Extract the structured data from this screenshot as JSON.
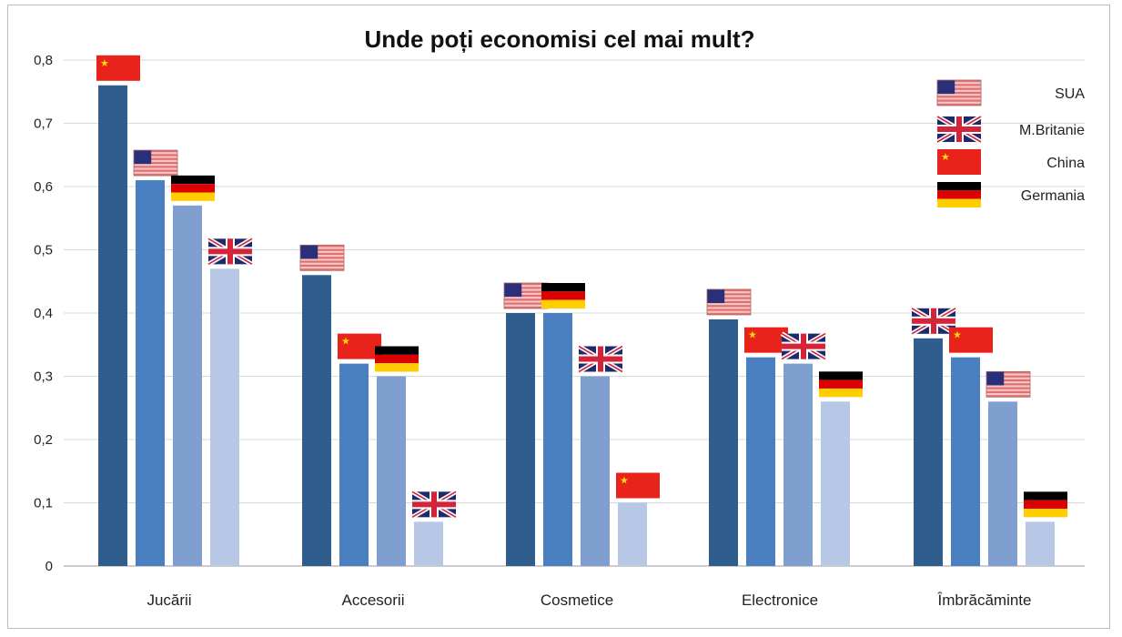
{
  "chart_data": {
    "type": "bar",
    "title": "Unde poți economisi cel mai mult?",
    "xlabel": "",
    "ylabel": "",
    "ylim": [
      0,
      0.8
    ],
    "yticks": [
      "0",
      "0,1",
      "0,2",
      "0,3",
      "0,4",
      "0,5",
      "0,6",
      "0,7",
      "0,8"
    ],
    "grid": true,
    "legend_position": "top-right",
    "legend": [
      {
        "key": "SUA",
        "label": "SUA"
      },
      {
        "key": "UK",
        "label": "M.Britanie"
      },
      {
        "key": "China",
        "label": "China"
      },
      {
        "key": "Germania",
        "label": "Germania"
      }
    ],
    "rank_colors": [
      "#2e5d8e",
      "#4a7fc0",
      "#7f9fcf",
      "#b6c8e6"
    ],
    "categories": [
      {
        "label": "Jucării",
        "bars": [
          {
            "country": "China",
            "value": 0.76
          },
          {
            "country": "SUA",
            "value": 0.61
          },
          {
            "country": "Germania",
            "value": 0.57
          },
          {
            "country": "UK",
            "value": 0.47
          }
        ]
      },
      {
        "label": "Accesorii",
        "bars": [
          {
            "country": "SUA",
            "value": 0.46
          },
          {
            "country": "China",
            "value": 0.32
          },
          {
            "country": "Germania",
            "value": 0.3
          },
          {
            "country": "UK",
            "value": 0.07
          }
        ]
      },
      {
        "label": "Cosmetice",
        "bars": [
          {
            "country": "SUA",
            "value": 0.4
          },
          {
            "country": "Germania",
            "value": 0.4
          },
          {
            "country": "UK",
            "value": 0.3
          },
          {
            "country": "China",
            "value": 0.1
          }
        ]
      },
      {
        "label": "Electronice",
        "bars": [
          {
            "country": "SUA",
            "value": 0.39
          },
          {
            "country": "China",
            "value": 0.33
          },
          {
            "country": "UK",
            "value": 0.32
          },
          {
            "country": "Germania",
            "value": 0.26
          }
        ]
      },
      {
        "label": "Îmbrăcăminte",
        "bars": [
          {
            "country": "UK",
            "value": 0.36
          },
          {
            "country": "China",
            "value": 0.33
          },
          {
            "country": "SUA",
            "value": 0.26
          },
          {
            "country": "Germania",
            "value": 0.07
          }
        ]
      }
    ]
  }
}
